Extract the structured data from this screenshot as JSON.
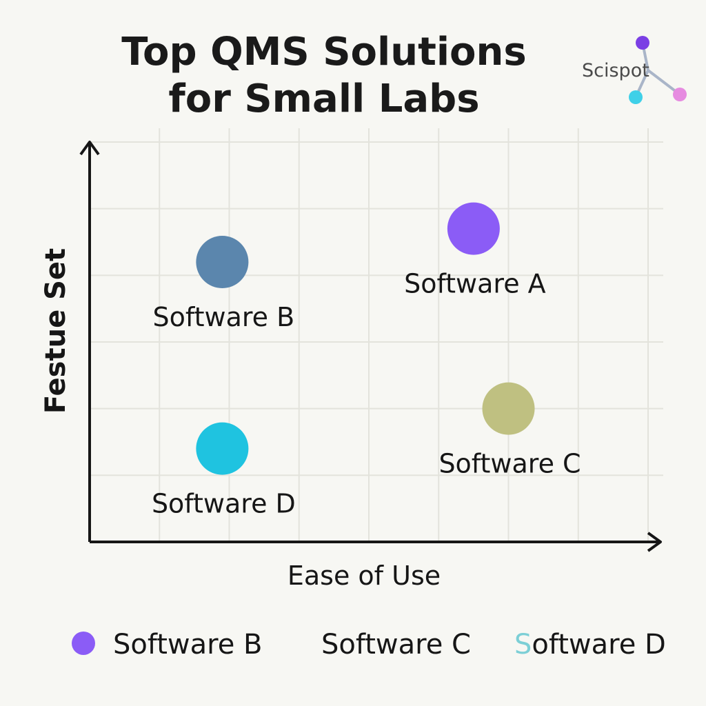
{
  "logo": {
    "text": "Scispot",
    "colors": [
      "#7b3fe4",
      "#3fd0e8",
      "#e68be0"
    ]
  },
  "chart_data": {
    "type": "scatter",
    "title": "Top QMS Solutions for Small Labs",
    "title_lines": [
      "Top QMS Solutions",
      "for Small Labs"
    ],
    "xlabel": "Ease of Use",
    "ylabel": "Festue Set",
    "xlim": [
      0,
      8
    ],
    "ylim": [
      0,
      6
    ],
    "grid": true,
    "points": [
      {
        "label": "Software A",
        "x": 5.5,
        "y": 4.7,
        "color": "#8b5cf6"
      },
      {
        "label": "Software B",
        "x": 1.9,
        "y": 4.2,
        "color": "#5b86ad"
      },
      {
        "label": "Software C",
        "x": 6.0,
        "y": 2.0,
        "color": "#bfc081"
      },
      {
        "label": "Software D",
        "x": 1.9,
        "y": 1.4,
        "color": "#1fc3e0"
      }
    ],
    "legend": {
      "position": "bottom",
      "entries": [
        {
          "label": "Software B",
          "color": "#8b5cf6",
          "marker": true
        },
        {
          "label": "Software C",
          "color": "",
          "marker": false
        },
        {
          "label": "Software D",
          "color": "#7ccfd6",
          "marker": false
        }
      ]
    }
  }
}
